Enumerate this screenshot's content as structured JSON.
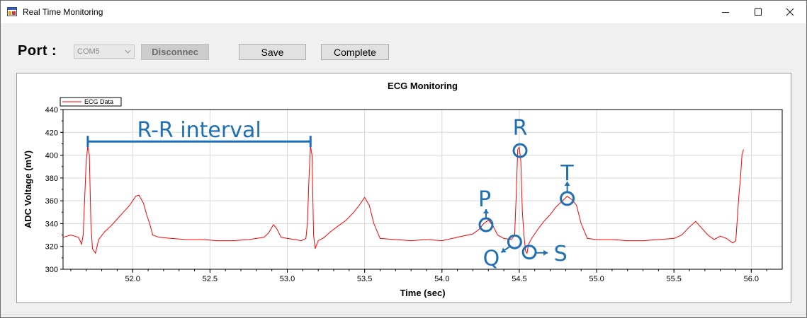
{
  "window": {
    "title": "Real Time Monitoring",
    "controls": {
      "minimize": "minimize-icon",
      "maximize": "maximize-icon",
      "close": "close-icon"
    }
  },
  "toolbar": {
    "port_label": "Port :",
    "port_value": "COM5",
    "disconnect_label": "Disconnec",
    "save_label": "Save",
    "complete_label": "Complete"
  },
  "chart_data": {
    "type": "line",
    "title": "ECG Monitoring",
    "xlabel": "Time (sec)",
    "ylabel": "ADC Voltage (mV)",
    "xlim": [
      51.55,
      56.2
    ],
    "ylim": [
      300,
      440
    ],
    "xticks": [
      "52.0",
      "52.5",
      "53.0",
      "53.5",
      "54.0",
      "54.5",
      "55.0",
      "55.5",
      "56.0"
    ],
    "yticks": [
      "300",
      "320",
      "340",
      "360",
      "380",
      "400",
      "420",
      "440"
    ],
    "grid": true,
    "legend": "top-left",
    "series": [
      {
        "name": "ECG Data",
        "color": "#ff0000",
        "x": [
          51.55,
          51.6,
          51.65,
          51.67,
          51.68,
          51.7,
          51.71,
          51.72,
          51.73,
          51.74,
          51.76,
          51.78,
          51.82,
          51.86,
          51.9,
          51.94,
          51.98,
          52.02,
          52.04,
          52.07,
          52.09,
          52.11,
          52.13,
          52.17,
          52.25,
          52.35,
          52.45,
          52.55,
          52.65,
          52.75,
          52.85,
          52.88,
          52.91,
          52.93,
          52.96,
          53.0,
          53.05,
          53.09,
          53.12,
          53.13,
          53.14,
          53.15,
          53.16,
          53.17,
          53.18,
          53.2,
          53.24,
          53.28,
          53.33,
          53.38,
          53.43,
          53.47,
          53.5,
          53.53,
          53.56,
          53.6,
          53.7,
          53.8,
          53.9,
          54.0,
          54.1,
          54.2,
          54.24,
          54.27,
          54.3,
          54.33,
          54.36,
          54.4,
          54.45,
          54.47,
          54.48,
          54.49,
          54.5,
          54.51,
          54.52,
          54.53,
          54.54,
          54.55,
          54.56,
          54.58,
          54.62,
          54.66,
          54.7,
          54.74,
          54.78,
          54.81,
          54.84,
          54.87,
          54.9,
          54.94,
          55.0,
          55.1,
          55.2,
          55.3,
          55.4,
          55.5,
          55.55,
          55.6,
          55.64,
          55.68,
          55.72,
          55.76,
          55.8,
          55.84,
          55.88,
          55.9,
          55.91,
          55.92,
          55.93,
          55.94,
          55.95
        ],
        "values": [
          328,
          330,
          328,
          322,
          330,
          395,
          408,
          400,
          340,
          318,
          314,
          326,
          333,
          338,
          344,
          350,
          356,
          364,
          365,
          358,
          348,
          340,
          330,
          328,
          327,
          326,
          326,
          325,
          325,
          326,
          328,
          332,
          339,
          336,
          328,
          327,
          326,
          325,
          327,
          340,
          380,
          408,
          400,
          330,
          318,
          325,
          328,
          333,
          338,
          343,
          350,
          357,
          363,
          356,
          340,
          327,
          326,
          325,
          326,
          325,
          328,
          331,
          335,
          340,
          343,
          338,
          330,
          327,
          326,
          330,
          365,
          405,
          407,
          395,
          350,
          330,
          316,
          314,
          322,
          327,
          335,
          342,
          348,
          355,
          360,
          364,
          361,
          356,
          340,
          327,
          326,
          326,
          325,
          325,
          326,
          327,
          330,
          337,
          342,
          336,
          330,
          326,
          329,
          327,
          323,
          325,
          345,
          365,
          380,
          400,
          405
        ]
      }
    ],
    "annotations": {
      "rr_interval": {
        "label": "R-R interval",
        "x_start": 51.71,
        "x_end": 53.15,
        "y": 412
      },
      "points": [
        {
          "label": "R",
          "x": 54.505,
          "y": 404
        },
        {
          "label": "T",
          "x": 54.81,
          "y": 362
        },
        {
          "label": "P",
          "x": 54.285,
          "y": 339
        },
        {
          "label": "Q",
          "x": 54.47,
          "y": 324
        },
        {
          "label": "S",
          "x": 54.565,
          "y": 315
        }
      ],
      "color": "#1f6fb5"
    }
  }
}
